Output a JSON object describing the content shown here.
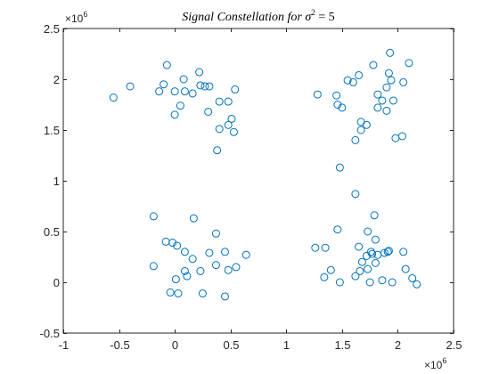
{
  "colors": {
    "marker": "#0072BD",
    "axis": "#262626",
    "background": "#ffffff"
  },
  "chart_data": {
    "type": "scatter",
    "title": "Signal Constellation for σ² = 5",
    "title_parts": {
      "pre": "Signal Constellation for ",
      "sym": "σ",
      "sup": "2",
      "post": " = 5"
    },
    "xlabel": "",
    "ylabel": "",
    "xlim": [
      -1,
      2.5
    ],
    "ylim": [
      -0.5,
      2.5
    ],
    "x_ticks": [
      -1,
      -0.5,
      0,
      0.5,
      1,
      1.5,
      2,
      2.5
    ],
    "y_ticks": [
      -0.5,
      0,
      0.5,
      1,
      1.5,
      2,
      2.5
    ],
    "x_tick_labels": [
      "-1",
      "-0.5",
      "0",
      "0.5",
      "1",
      "1.5",
      "2",
      "2.5"
    ],
    "y_tick_labels": [
      "-0.5",
      "0",
      "0.5",
      "1",
      "1.5",
      "2",
      "2.5"
    ],
    "exponent": {
      "base": "×10",
      "power": "6"
    },
    "grid": false,
    "marker": "circle-open",
    "series": [
      {
        "points": [
          [
            -0.55,
            1.82
          ],
          [
            -0.4,
            1.93
          ],
          [
            -0.07,
            2.14
          ],
          [
            -0.1,
            1.95
          ],
          [
            -0.14,
            1.88
          ],
          [
            0.0,
            1.88
          ],
          [
            0.08,
            2.0
          ],
          [
            0.09,
            1.88
          ],
          [
            0.16,
            1.86
          ],
          [
            0.22,
            2.07
          ],
          [
            0.23,
            1.94
          ],
          [
            0.27,
            1.93
          ],
          [
            0.31,
            1.93
          ],
          [
            0.05,
            1.74
          ],
          [
            0.0,
            1.65
          ],
          [
            0.3,
            1.68
          ],
          [
            0.4,
            1.78
          ],
          [
            0.48,
            1.78
          ],
          [
            0.54,
            1.9
          ],
          [
            0.48,
            1.55
          ],
          [
            0.51,
            1.61
          ],
          [
            0.53,
            1.48
          ],
          [
            0.4,
            1.51
          ],
          [
            0.38,
            1.3
          ],
          [
            1.28,
            1.85
          ],
          [
            1.45,
            1.84
          ],
          [
            1.46,
            1.75
          ],
          [
            1.5,
            1.72
          ],
          [
            1.55,
            1.99
          ],
          [
            1.6,
            1.97
          ],
          [
            1.65,
            2.04
          ],
          [
            1.78,
            2.14
          ],
          [
            1.93,
            2.26
          ],
          [
            2.1,
            2.16
          ],
          [
            1.92,
            2.06
          ],
          [
            1.94,
            1.99
          ],
          [
            1.9,
            1.92
          ],
          [
            1.82,
            1.85
          ],
          [
            2.05,
            1.97
          ],
          [
            1.86,
            1.79
          ],
          [
            1.96,
            1.79
          ],
          [
            1.82,
            1.72
          ],
          [
            1.9,
            1.69
          ],
          [
            1.67,
            1.58
          ],
          [
            1.72,
            1.55
          ],
          [
            1.67,
            1.5
          ],
          [
            1.62,
            1.4
          ],
          [
            1.98,
            1.42
          ],
          [
            2.04,
            1.44
          ],
          [
            1.48,
            1.13
          ],
          [
            1.62,
            0.87
          ],
          [
            -0.19,
            0.65
          ],
          [
            0.17,
            0.63
          ],
          [
            -0.08,
            0.4
          ],
          [
            -0.02,
            0.39
          ],
          [
            0.02,
            0.36
          ],
          [
            0.37,
            0.48
          ],
          [
            0.09,
            0.3
          ],
          [
            0.16,
            0.23
          ],
          [
            0.31,
            0.29
          ],
          [
            0.45,
            0.3
          ],
          [
            0.64,
            0.27
          ],
          [
            -0.19,
            0.16
          ],
          [
            0.09,
            0.11
          ],
          [
            0.23,
            0.11
          ],
          [
            0.37,
            0.17
          ],
          [
            0.48,
            0.12
          ],
          [
            0.55,
            0.15
          ],
          [
            0.11,
            0.06
          ],
          [
            -0.04,
            -0.1
          ],
          [
            0.03,
            -0.11
          ],
          [
            0.01,
            0.03
          ],
          [
            0.25,
            -0.11
          ],
          [
            0.45,
            -0.14
          ],
          [
            1.46,
            0.52
          ],
          [
            1.79,
            0.66
          ],
          [
            1.73,
            0.5
          ],
          [
            1.8,
            0.42
          ],
          [
            1.26,
            0.34
          ],
          [
            1.35,
            0.34
          ],
          [
            1.65,
            0.35
          ],
          [
            1.72,
            0.26
          ],
          [
            1.76,
            0.3
          ],
          [
            1.77,
            0.28
          ],
          [
            1.82,
            0.27
          ],
          [
            1.88,
            0.29
          ],
          [
            1.92,
            0.31
          ],
          [
            2.05,
            0.3
          ],
          [
            1.68,
            0.2
          ],
          [
            1.73,
            0.13
          ],
          [
            1.8,
            0.19
          ],
          [
            1.4,
            0.12
          ],
          [
            1.34,
            0.05
          ],
          [
            1.48,
            0.0
          ],
          [
            1.62,
            0.06
          ],
          [
            1.66,
            0.11
          ],
          [
            1.75,
            0.0
          ],
          [
            1.86,
            0.02
          ],
          [
            1.95,
            0.0
          ],
          [
            2.07,
            0.13
          ],
          [
            2.13,
            0.04
          ],
          [
            2.17,
            -0.02
          ],
          [
            1.91,
            0.3
          ]
        ]
      }
    ]
  }
}
